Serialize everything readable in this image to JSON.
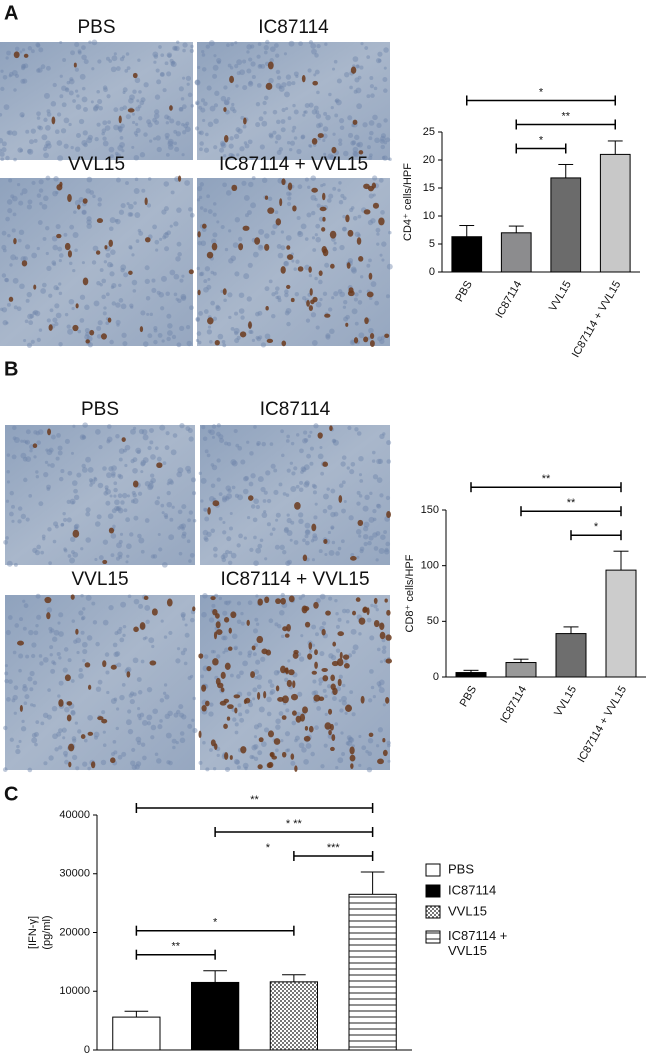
{
  "panels": [
    {
      "label": "A",
      "images": [
        "PBS",
        "IC87114",
        "VVL15",
        "IC87114 + VVL15"
      ]
    },
    {
      "label": "B",
      "images": [
        "PBS",
        "IC87114",
        "VVL15",
        "IC87114 + VVL15"
      ]
    },
    {
      "label": "C",
      "images": []
    }
  ],
  "chart_data": [
    {
      "type": "bar",
      "y_label": [
        "CD4⁺ cells/HPF"
      ],
      "categories": [
        "PBS",
        "IC87114",
        "VVL15",
        "IC87114 + VVL15"
      ],
      "values": [
        6.3,
        7,
        16.8,
        21
      ],
      "errors": [
        2,
        1.2,
        2.4,
        2.4
      ],
      "colors": [
        "#000000",
        "#8c8c8e",
        "#6b6b6b",
        "#c8c8c8"
      ],
      "ylim": [
        0,
        25
      ],
      "yticks": [
        0,
        5,
        10,
        15,
        20,
        25
      ],
      "annotations": [
        {
          "from": 1,
          "to": 2,
          "label": "*"
        },
        {
          "from": 1,
          "to": 3,
          "label": "**"
        },
        {
          "from": 0,
          "to": 3,
          "label": "*"
        }
      ]
    },
    {
      "type": "bar",
      "y_label": [
        "CD8⁺ cells/HPF"
      ],
      "categories": [
        "PBS",
        "IC87114",
        "VVL15",
        "IC87114 + VVL15"
      ],
      "values": [
        4,
        13,
        39,
        96
      ],
      "errors": [
        2,
        3,
        6,
        17
      ],
      "colors": [
        "#000000",
        "#999999",
        "#6e6e6e",
        "#cccccc"
      ],
      "ylim": [
        0,
        150
      ],
      "yticks": [
        0,
        50,
        100,
        150
      ],
      "annotations": [
        {
          "from": 2,
          "to": 3,
          "label": "*"
        },
        {
          "from": 1,
          "to": 3,
          "label": "**"
        },
        {
          "from": 0,
          "to": 3,
          "label": "**"
        }
      ]
    },
    {
      "type": "bar",
      "y_label": [
        "[IFN-γ]",
        "(pg/ml)"
      ],
      "categories": [
        "PBS",
        "IC87114",
        "VVL15",
        "IC87114 + VVL15"
      ],
      "values": [
        5600,
        11500,
        11600,
        26500
      ],
      "errors": [
        1000,
        2000,
        1200,
        3800
      ],
      "colors": [
        "white",
        "black",
        "checker",
        "hstripe"
      ],
      "ylim": [
        0,
        40000
      ],
      "yticks": [
        0,
        10000,
        20000,
        30000,
        40000
      ],
      "legend": "right",
      "annotations": [
        {
          "from": 0,
          "to": 1,
          "label": "**"
        },
        {
          "from": 0,
          "to": 2,
          "label": "*"
        },
        {
          "from": 2,
          "to": 3,
          "label": "***",
          "left_label": "*"
        },
        {
          "from": 1,
          "to": 3,
          "label": "* **"
        },
        {
          "from": 0,
          "to": 3,
          "label": "**"
        }
      ]
    }
  ]
}
